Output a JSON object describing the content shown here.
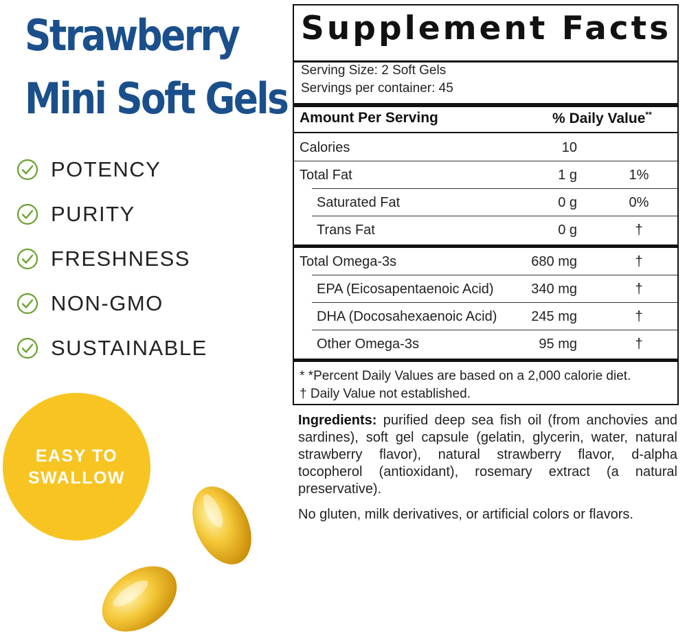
{
  "product": {
    "title_line1": "Strawberry",
    "title_line2": "Mini Soft Gels",
    "accent_color": "#1a4f8b",
    "check_color": "#6aa12e",
    "badge_color": "#f7c421"
  },
  "benefits": [
    {
      "label": "POTENCY",
      "icon": "check-circle-icon"
    },
    {
      "label": "PURITY",
      "icon": "check-circle-icon"
    },
    {
      "label": "FRESHNESS",
      "icon": "check-circle-icon"
    },
    {
      "label": "NON-GMO",
      "icon": "check-circle-icon"
    },
    {
      "label": "SUSTAINABLE",
      "icon": "check-circle-icon"
    }
  ],
  "badge": {
    "line1": "EASY TO",
    "line2": "SWALLOW"
  },
  "supplement_facts": {
    "title": "Supplement Facts",
    "serving_size": "Serving Size: 2 Soft Gels",
    "servings_per_container": "Servings per container: 45",
    "header_amount": "Amount Per Serving",
    "header_dv": "% Daily Value",
    "header_dv_marker": "**",
    "rows": [
      {
        "name": "Calories",
        "amount": "10",
        "dv": ""
      },
      {
        "name": "Total Fat",
        "amount": "1 g",
        "dv": "1%"
      },
      {
        "name": "Saturated Fat",
        "amount": "0 g",
        "dv": "0%"
      },
      {
        "name": "Trans Fat",
        "amount": "0 g",
        "dv": "†"
      },
      {
        "name": "Total Omega-3s",
        "amount": "680 mg",
        "dv": "†"
      },
      {
        "name": "EPA (Eicosapentaenoic Acid)",
        "amount": "340 mg",
        "dv": "†"
      },
      {
        "name": "DHA (Docosahexaenoic Acid)",
        "amount": "245 mg",
        "dv": "†"
      },
      {
        "name": "Other Omega-3s",
        "amount": "95 mg",
        "dv": "†"
      }
    ],
    "footnote1": "* *Percent Daily Values are based on a 2,000 calorie diet.",
    "footnote2": "†  Daily Value not established."
  },
  "ingredients": {
    "label": "Ingredients:",
    "text": " purified deep sea fish oil (from anchovies and sardines), soft gel capsule (gelatin, glycerin, water, natural strawberry flavor), natural strawberry flavor, d-alpha tocopherol (antioxidant), rosemary extract (a natural preservative).",
    "free_from": "No gluten, milk derivatives, or artificial colors or flavors."
  }
}
